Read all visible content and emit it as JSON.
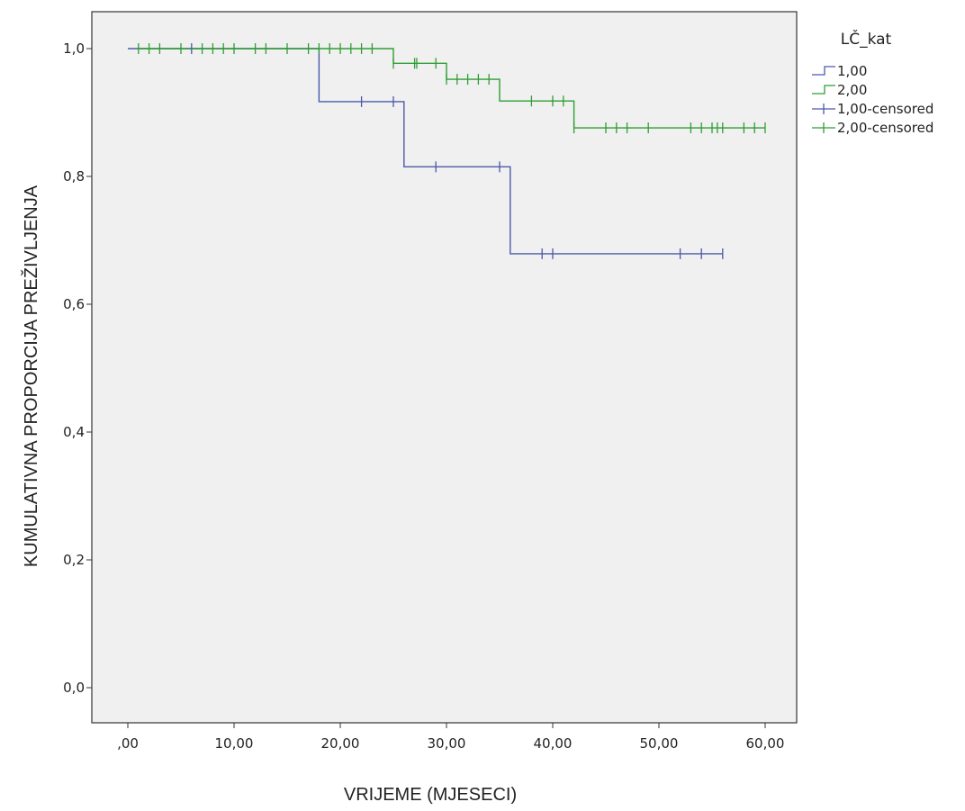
{
  "chart_data": {
    "type": "line",
    "xlabel": "VRIJEME (MJESECI)",
    "ylabel": "KUMULATIVNA PROPORCIJA PREŽIVLJENJA",
    "xlim": [
      -3.5,
      62
    ],
    "ylim": [
      -0.06,
      1.06
    ],
    "x_ticks": [
      0,
      10,
      20,
      30,
      40,
      50,
      60
    ],
    "x_tick_labels": [
      ",00",
      "10,00",
      "20,00",
      "30,00",
      "40,00",
      "50,00",
      "60,00"
    ],
    "y_ticks": [
      0,
      0.2,
      0.4,
      0.6,
      0.8,
      1.0
    ],
    "y_tick_labels": [
      "0,0",
      "0,2",
      "0,4",
      "0,6",
      "0,8",
      "1,0"
    ],
    "grid": false,
    "plot_background": "#f0f0f0",
    "legend": {
      "title": "LČ_kat",
      "placement": "right",
      "entries": [
        "1,00",
        "2,00",
        "1,00-censored",
        "2,00-censored"
      ]
    },
    "series": [
      {
        "name": "1,00",
        "color": "#4a5aa8",
        "steps": [
          [
            0,
            1.0
          ],
          [
            18,
            0.917
          ],
          [
            26,
            0.815
          ],
          [
            36,
            0.679
          ],
          [
            56,
            0.679
          ]
        ],
        "censored_x": [
          6,
          22,
          25,
          29,
          35,
          39,
          40,
          52,
          54,
          56
        ]
      },
      {
        "name": "2,00",
        "color": "#2e9e33",
        "steps": [
          [
            1,
            1.0
          ],
          [
            25,
            0.977
          ],
          [
            30,
            0.952
          ],
          [
            35,
            0.918
          ],
          [
            42,
            0.876
          ],
          [
            60,
            0.876
          ]
        ],
        "censored_x": [
          1,
          2,
          3,
          5,
          7,
          8,
          9,
          10,
          12,
          13,
          15,
          17,
          18,
          19,
          20,
          21,
          22,
          23,
          25,
          27,
          27.2,
          29,
          30,
          31,
          32,
          33,
          34,
          38,
          40,
          41,
          42,
          45,
          46,
          47,
          49,
          53,
          54,
          55,
          55.5,
          56,
          58,
          59,
          60
        ]
      }
    ]
  }
}
